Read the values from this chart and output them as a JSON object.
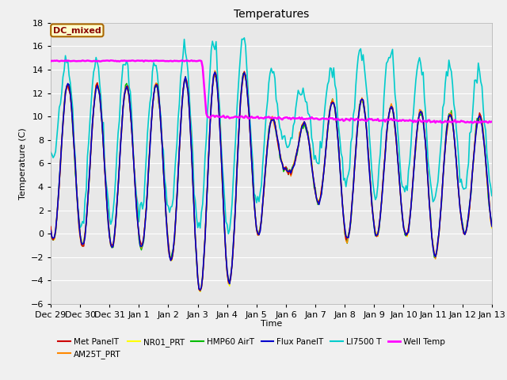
{
  "title": "Temperatures",
  "xlabel": "Time",
  "ylabel": "Temperature (C)",
  "ylim": [
    -6,
    18
  ],
  "grid_color": "#ffffff",
  "fig_bg": "#f0f0f0",
  "plot_bg": "#e8e8e8",
  "annotation_label": "DC_mixed",
  "xtick_labels": [
    "Dec 29",
    "Dec 30",
    "Dec 31",
    "Jan 1",
    "Jan 2",
    "Jan 3",
    "Jan 4",
    "Jan 5",
    "Jan 6",
    "Jan 7",
    "Jan 8",
    "Jan 9",
    "Jan 10",
    "Jan 11",
    "Jan 12",
    "Jan 13"
  ],
  "series_colors": {
    "Met PanelT": "#cc0000",
    "AM25T_PRT": "#ff8800",
    "NR01_PRT": "#ffff00",
    "HMP60 AirT": "#00bb00",
    "Flux PanelT": "#0000cc",
    "LI7500 T": "#00cccc",
    "Well Temp": "#ff00ff"
  },
  "series_linewidths": {
    "Met PanelT": 1.0,
    "AM25T_PRT": 1.0,
    "NR01_PRT": 1.0,
    "HMP60 AirT": 1.0,
    "Flux PanelT": 1.2,
    "LI7500 T": 1.2,
    "Well Temp": 1.8
  }
}
